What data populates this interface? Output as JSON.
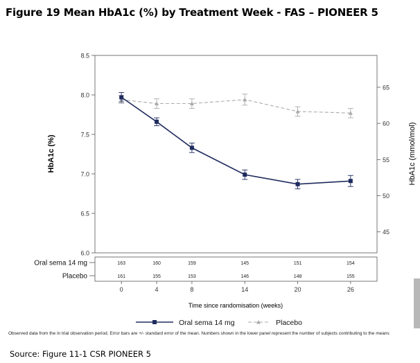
{
  "figure_title": "Figure 19 Mean HbA1c (%) by Treatment Week - FAS – PIONEER 5",
  "footnote": "Observed data from the in trial observation period. Error bars are +/- standard error of the mean. Numbers shown in the lower panel represent the number of subjects contributing to the means",
  "source": "Source: Figure 11-1 CSR PIONEER 5",
  "colors": {
    "sema": "#1f2b5e",
    "placebo": "#aaaaaa"
  },
  "chart_data": {
    "type": "line",
    "x": [
      0,
      4,
      8,
      14,
      20,
      26
    ],
    "xlabel": "Time since randomisation (weeks)",
    "ylabel": "HbA1c (%)",
    "ylabel_right": "HbA1c (mmol/mol)",
    "ylim": [
      6.0,
      8.5
    ],
    "yticks": [
      "6.0",
      "6.5",
      "7.0",
      "7.5",
      "8.0",
      "8.5"
    ],
    "ylim_right": [
      42.1,
      69.4
    ],
    "yticks_right": [
      "45",
      "50",
      "55",
      "60",
      "65"
    ],
    "grid": false,
    "legend_position": "bottom",
    "series": [
      {
        "name": "Oral sema 14 mg",
        "values": [
          7.97,
          7.66,
          7.33,
          6.99,
          6.87,
          6.91
        ],
        "se": [
          0.06,
          0.05,
          0.06,
          0.06,
          0.06,
          0.07
        ],
        "marker": "square"
      },
      {
        "name": "Placebo",
        "values": [
          7.94,
          7.89,
          7.89,
          7.94,
          7.79,
          7.77
        ],
        "se": [
          0.05,
          0.06,
          0.06,
          0.07,
          0.06,
          0.06
        ],
        "marker": "triangle"
      }
    ],
    "at_risk": {
      "rows": [
        {
          "label": "Oral sema 14 mg",
          "counts": [
            "163",
            "160",
            "159",
            "145",
            "151",
            "154"
          ]
        },
        {
          "label": "Placebo",
          "counts": [
            "161",
            "155",
            "153",
            "146",
            "148",
            "155"
          ]
        }
      ]
    }
  }
}
